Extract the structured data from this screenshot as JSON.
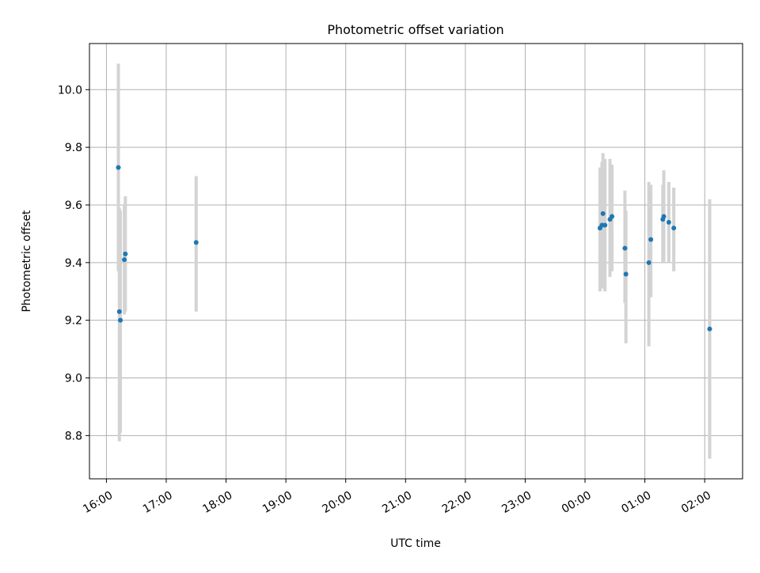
{
  "chart_data": {
    "type": "scatter",
    "title": "Photometric offset variation",
    "xlabel": "UTC time",
    "ylabel": "Photometric offset",
    "xlim": [
      "15:43",
      "02:38 (+1 day)"
    ],
    "ylim": [
      8.65,
      10.16
    ],
    "grid": true,
    "x_ticks": [
      "16:00",
      "17:00",
      "18:00",
      "19:00",
      "20:00",
      "21:00",
      "22:00",
      "23:00",
      "00:00",
      "01:00",
      "02:00"
    ],
    "y_ticks": [
      "8.8",
      "9.0",
      "9.2",
      "9.4",
      "9.6",
      "9.8",
      "10.0"
    ],
    "point_color": "#1f77b4",
    "errorbar_color": "#d3d3d3",
    "points": [
      {
        "x": "16:12",
        "y": 9.73,
        "ylo": 9.37,
        "yhi": 10.09
      },
      {
        "x": "16:13",
        "y": 9.23,
        "ylo": 8.78,
        "yhi": 9.59
      },
      {
        "x": "16:14",
        "y": 9.2,
        "ylo": 8.81,
        "yhi": 9.58
      },
      {
        "x": "16:18",
        "y": 9.41,
        "ylo": 9.22,
        "yhi": 9.6
      },
      {
        "x": "16:19",
        "y": 9.43,
        "ylo": 9.23,
        "yhi": 9.63
      },
      {
        "x": "17:30",
        "y": 9.47,
        "ylo": 9.23,
        "yhi": 9.7
      },
      {
        "x": "00:15",
        "y": 9.52,
        "ylo": 9.3,
        "yhi": 9.73
      },
      {
        "x": "00:17",
        "y": 9.53,
        "ylo": 9.31,
        "yhi": 9.75
      },
      {
        "x": "00:18",
        "y": 9.57,
        "ylo": 9.36,
        "yhi": 9.78
      },
      {
        "x": "00:20",
        "y": 9.53,
        "ylo": 9.3,
        "yhi": 9.76
      },
      {
        "x": "00:25",
        "y": 9.55,
        "ylo": 9.35,
        "yhi": 9.76
      },
      {
        "x": "00:27",
        "y": 9.56,
        "ylo": 9.37,
        "yhi": 9.74
      },
      {
        "x": "00:40",
        "y": 9.45,
        "ylo": 9.26,
        "yhi": 9.65
      },
      {
        "x": "00:41",
        "y": 9.36,
        "ylo": 9.12,
        "yhi": 9.58
      },
      {
        "x": "01:04",
        "y": 9.4,
        "ylo": 9.11,
        "yhi": 9.68
      },
      {
        "x": "01:06",
        "y": 9.48,
        "ylo": 9.28,
        "yhi": 9.67
      },
      {
        "x": "01:18",
        "y": 9.55,
        "ylo": 9.4,
        "yhi": 9.67
      },
      {
        "x": "01:19",
        "y": 9.56,
        "ylo": 9.4,
        "yhi": 9.72
      },
      {
        "x": "01:24",
        "y": 9.54,
        "ylo": 9.4,
        "yhi": 9.68
      },
      {
        "x": "01:29",
        "y": 9.52,
        "ylo": 9.37,
        "yhi": 9.66
      },
      {
        "x": "02:05",
        "y": 9.17,
        "ylo": 8.72,
        "yhi": 9.62
      }
    ]
  }
}
